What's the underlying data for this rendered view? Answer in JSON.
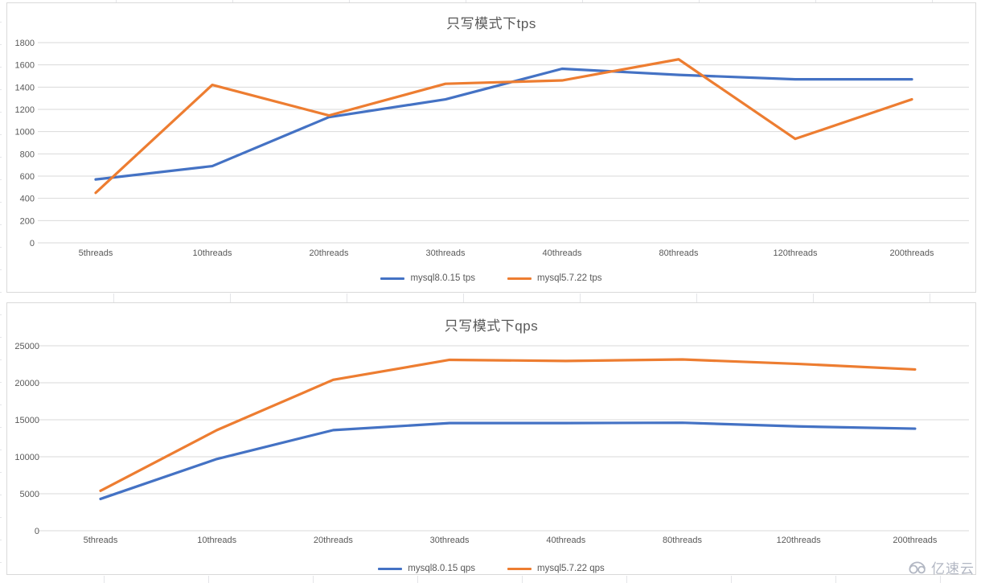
{
  "watermark": {
    "text": "亿速云",
    "logo": "cloud-logo",
    "color": "#b2b7c3"
  },
  "colors": {
    "series_blue": "#4472c4",
    "series_orange": "#ed7d31",
    "title_text": "#595959",
    "axis_text": "#595959",
    "gridline": "#d9d9d9",
    "chart_border": "#d9d9d9",
    "sheet_gridline": "#e4e5e8"
  },
  "chart_data": [
    {
      "type": "line",
      "title": "只写模式下tps",
      "categories": [
        "5threads",
        "10threads",
        "20threads",
        "30threads",
        "40threads",
        "80threads",
        "120threads",
        "200threads"
      ],
      "series": [
        {
          "name": "mysql8.0.15 tps",
          "color": "#4472c4",
          "values": [
            570,
            690,
            1130,
            1290,
            1565,
            1510,
            1470,
            1470
          ]
        },
        {
          "name": "mysql5.7.22 tps",
          "color": "#ed7d31",
          "values": [
            450,
            1420,
            1145,
            1430,
            1460,
            1650,
            935,
            1290
          ]
        }
      ],
      "ylim": [
        0,
        1800
      ],
      "ytick_step": 200,
      "yticks": [
        0,
        200,
        400,
        600,
        800,
        1000,
        1200,
        1400,
        1600,
        1800
      ],
      "grid": true,
      "legend_position": "bottom"
    },
    {
      "type": "line",
      "title": "只写模式下qps",
      "categories": [
        "5threads",
        "10threads",
        "20threads",
        "30threads",
        "40threads",
        "80threads",
        "120threads",
        "200threads"
      ],
      "series": [
        {
          "name": "mysql8.0.15 qps",
          "color": "#4472c4",
          "values": [
            4300,
            9700,
            13600,
            14550,
            14550,
            14600,
            14100,
            13800
          ]
        },
        {
          "name": "mysql5.7.22 qps",
          "color": "#ed7d31",
          "values": [
            5400,
            13600,
            20400,
            23100,
            22950,
            23150,
            22550,
            21800
          ]
        }
      ],
      "ylim": [
        0,
        25000
      ],
      "ytick_step": 5000,
      "yticks": [
        0,
        5000,
        10000,
        15000,
        20000,
        25000
      ],
      "grid": true,
      "legend_position": "bottom"
    }
  ]
}
